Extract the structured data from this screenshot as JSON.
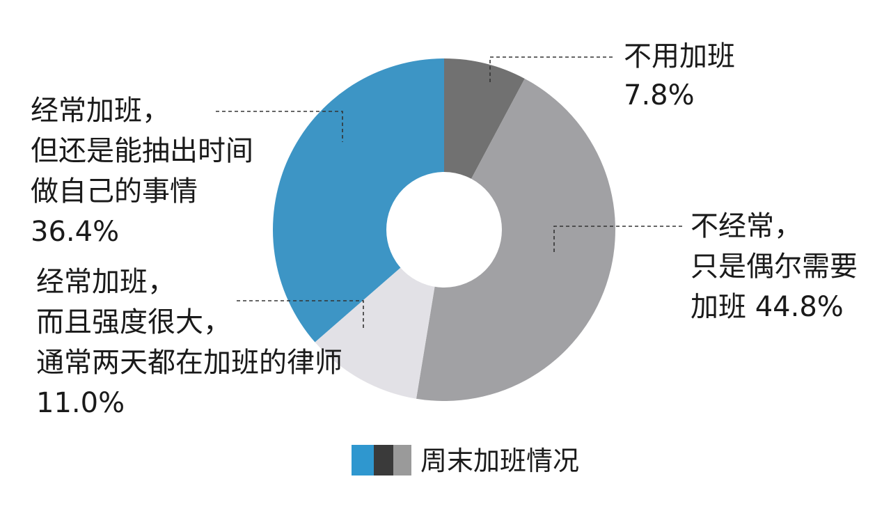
{
  "chart_data": {
    "type": "pie",
    "variant": "donut",
    "slices": [
      {
        "label_lines": [
          "不用加班",
          "7.8%"
        ],
        "value": 7.8,
        "color": "#717171"
      },
      {
        "label_lines": [
          "不经常，",
          "只是偶尔需要",
          "加班 44.8%"
        ],
        "value": 44.8,
        "color": "#a1a1a4"
      },
      {
        "label_lines": [
          "经常加班，",
          "而且强度很大，",
          "通常两天都在加班的律师",
          "11.0%"
        ],
        "value": 11.0,
        "color": "#e2e1e6"
      },
      {
        "label_lines": [
          "经常加班，",
          "但还是能抽出时间",
          "做自己的事情",
          "36.4%"
        ],
        "value": 36.4,
        "color": "#3d95c5"
      }
    ],
    "legend": {
      "text": "周末加班情况",
      "swatch_colors": [
        "#2f97cf",
        "#3a3a3a",
        "#9a9a9a"
      ]
    }
  }
}
